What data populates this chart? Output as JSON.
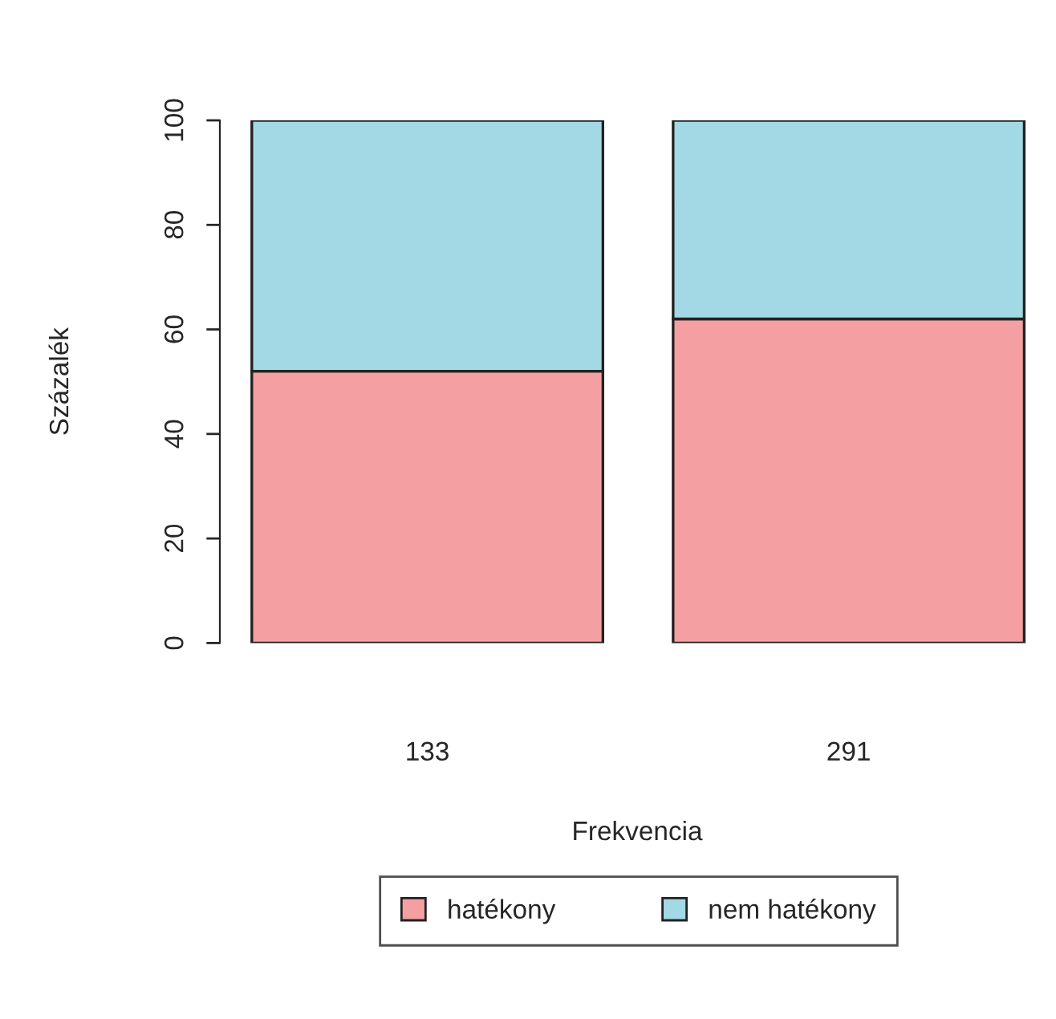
{
  "chart_data": {
    "type": "bar",
    "stacked": true,
    "xlabel": "Frekvencia",
    "ylabel": "Százalék",
    "categories": [
      "133",
      "291"
    ],
    "series": [
      {
        "name": "hatékony",
        "color": "#f4a0a2",
        "values": [
          52,
          62
        ]
      },
      {
        "name": "nem hatékony",
        "color": "#a2d9e4",
        "values": [
          48,
          38
        ]
      }
    ],
    "ylim": [
      0,
      100
    ],
    "yticks": [
      0,
      20,
      40,
      60,
      80,
      100
    ],
    "legend": "bottom",
    "grid": false
  }
}
